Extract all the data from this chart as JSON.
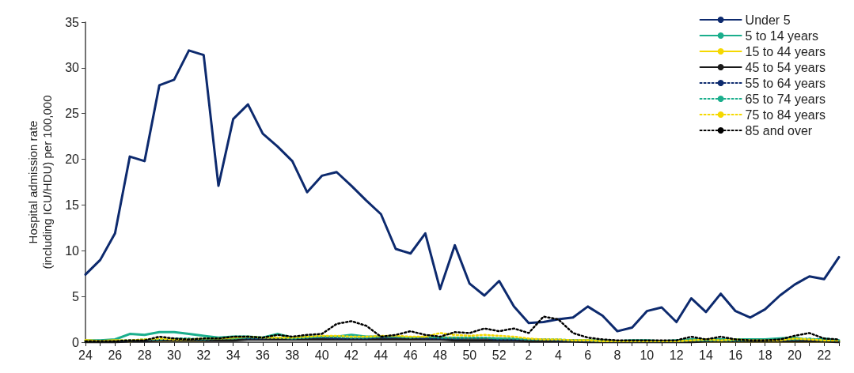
{
  "chart_data": {
    "type": "line",
    "ylabel": "Hospital admission rate (including ICU/HDU) per 100,000",
    "categories": [
      "24",
      null,
      "26",
      null,
      "28",
      null,
      "30",
      null,
      "32",
      null,
      "34",
      null,
      "36",
      null,
      "38",
      null,
      "40",
      null,
      "42",
      null,
      "44",
      null,
      "46",
      null,
      "48",
      null,
      "50",
      null,
      "52",
      null,
      "2",
      null,
      "4",
      null,
      "6",
      null,
      "8",
      null,
      "10",
      null,
      "12",
      null,
      "14",
      null,
      "16",
      null,
      "18",
      null,
      "20",
      null,
      "22",
      null
    ],
    "ylim": [
      0,
      35
    ],
    "yticks": [
      0,
      5,
      10,
      15,
      20,
      25,
      30,
      35
    ],
    "grid": false,
    "legend": "top right",
    "marker": "none",
    "series": [
      {
        "name": "Under 5",
        "color": "#0d2a6e",
        "line_style": "solid",
        "values": [
          7.4,
          9.0,
          11.9,
          20.3,
          19.8,
          28.1,
          28.7,
          31.9,
          31.4,
          17.1,
          24.4,
          26.0,
          22.8,
          21.4,
          19.8,
          16.4,
          18.2,
          18.6,
          17.1,
          15.5,
          14.0,
          10.2,
          9.7,
          11.9,
          5.8,
          10.6,
          6.4,
          5.1,
          6.7,
          3.9,
          2.1,
          2.2,
          2.5,
          2.7,
          3.9,
          2.9,
          1.2,
          1.6,
          3.4,
          3.8,
          2.2,
          4.8,
          3.3,
          5.3,
          3.4,
          2.7,
          3.6,
          5.1,
          6.3,
          7.2,
          6.9,
          9.3
        ]
      },
      {
        "name": "5 to 14 years",
        "color": "#1aae8c",
        "line_style": "solid",
        "values": [
          0.2,
          0.2,
          0.3,
          0.9,
          0.8,
          1.1,
          1.1,
          0.9,
          0.7,
          0.5,
          0.6,
          0.6,
          0.5,
          0.9,
          0.5,
          0.6,
          0.6,
          0.6,
          0.8,
          0.6,
          0.6,
          0.5,
          0.5,
          0.4,
          0.4,
          0.4,
          0.3,
          0.4,
          0.4,
          0.3,
          0.3,
          0.2,
          0.2,
          0.2,
          0.2,
          0.2,
          0.1,
          0.2,
          0.2,
          0.1,
          0.2,
          0.3,
          0.3,
          0.3,
          0.3,
          0.3,
          0.3,
          0.4,
          0.5,
          0.2,
          0.4,
          0.2
        ]
      },
      {
        "name": "15 to 44 years",
        "color": "#f5d800",
        "line_style": "solid",
        "values": [
          0.2,
          0.1,
          0.2,
          0.1,
          0.2,
          0.2,
          0.2,
          0.2,
          0.2,
          0.3,
          0.3,
          0.3,
          0.3,
          0.3,
          0.3,
          0.3,
          0.3,
          0.3,
          0.3,
          0.3,
          0.4,
          0.4,
          0.4,
          0.4,
          0.5,
          0.5,
          0.4,
          0.4,
          0.3,
          0.3,
          0.2,
          0.2,
          0.2,
          0.2,
          0.2,
          0.1,
          0.1,
          0.1,
          0.1,
          0.1,
          0.1,
          0.1,
          0.1,
          0.1,
          0.1,
          0.1,
          0.1,
          0.1,
          0.1,
          0.1,
          0.1,
          0.1
        ]
      },
      {
        "name": "45 to 54 years",
        "color": "#1a1a1a",
        "line_style": "solid",
        "values": [
          0,
          0,
          0,
          0.1,
          0.1,
          0.2,
          0.2,
          0.2,
          0.2,
          0.2,
          0.2,
          0.3,
          0.3,
          0.3,
          0.3,
          0.3,
          0.3,
          0.3,
          0.3,
          0.3,
          0.3,
          0.3,
          0.3,
          0.3,
          0.3,
          0.2,
          0.2,
          0.2,
          0.2,
          0.2,
          0.1,
          0.1,
          0.1,
          0.1,
          0,
          0,
          0,
          0,
          0,
          0,
          0,
          0,
          0.1,
          0.1,
          0.1,
          0.1,
          0.1,
          0.1,
          0.1,
          0.1,
          0.1,
          0
        ]
      },
      {
        "name": "55 to 64 years",
        "color": "#0d2a6e",
        "line_style": "dotted",
        "values": [
          0.1,
          0.1,
          0.1,
          0.2,
          0.2,
          0.3,
          0.3,
          0.3,
          0.3,
          0.4,
          0.5,
          0.4,
          0.4,
          0.5,
          0.4,
          0.5,
          0.5,
          0.4,
          0.4,
          0.4,
          0.5,
          0.5,
          0.5,
          0.4,
          0.4,
          0.4,
          0.4,
          0.4,
          0.3,
          0.3,
          0.3,
          0.3,
          0.2,
          0.2,
          0.1,
          0.1,
          0.1,
          0.1,
          0.1,
          0.1,
          0.1,
          0.2,
          0.2,
          0.2,
          0.2,
          0.2,
          0.2,
          0.2,
          0.3,
          0.3,
          0.2,
          0.2
        ]
      },
      {
        "name": "65 to 74 years",
        "color": "#1aae8c",
        "line_style": "dotted",
        "values": [
          0.1,
          0.1,
          0.2,
          0.2,
          0.3,
          0.3,
          0.4,
          0.4,
          0.3,
          0.4,
          0.4,
          0.5,
          0.5,
          0.5,
          0.4,
          0.5,
          0.6,
          0.6,
          0.5,
          0.5,
          0.6,
          0.6,
          0.5,
          0.6,
          0.5,
          0.5,
          0.5,
          0.5,
          0.4,
          0.4,
          0.3,
          0.3,
          0.3,
          0.2,
          0.2,
          0.1,
          0.1,
          0.1,
          0.1,
          0.1,
          0.1,
          0.2,
          0.2,
          0.2,
          0.2,
          0.2,
          0.2,
          0.3,
          0.3,
          0.4,
          0.2,
          0.2
        ]
      },
      {
        "name": "75 to 84 years",
        "color": "#f5d800",
        "line_style": "dotted",
        "values": [
          0.2,
          0.1,
          0.2,
          0.2,
          0.3,
          0.4,
          0.3,
          0.3,
          0.4,
          0.4,
          0.5,
          0.6,
          0.5,
          0.5,
          0.5,
          0.6,
          0.7,
          0.7,
          0.6,
          0.6,
          0.7,
          0.7,
          0.6,
          0.6,
          1.0,
          0.8,
          0.7,
          0.8,
          0.7,
          0.6,
          0.4,
          0.3,
          0.3,
          0.2,
          0.2,
          0.1,
          0.1,
          0.1,
          0.1,
          0.1,
          0.1,
          0.2,
          0.3,
          0.2,
          0.3,
          0.2,
          0.2,
          0.2,
          0.4,
          0.3,
          0.2,
          0.2
        ]
      },
      {
        "name": "85 and over",
        "color": "#000000",
        "line_style": "dotted",
        "values": [
          0.1,
          0.1,
          0.1,
          0.2,
          0.2,
          0.6,
          0.4,
          0.3,
          0.4,
          0.4,
          0.6,
          0.6,
          0.5,
          0.8,
          0.6,
          0.8,
          0.9,
          2.0,
          2.3,
          1.8,
          0.6,
          0.8,
          1.2,
          0.8,
          0.6,
          1.1,
          1.0,
          1.5,
          1.2,
          1.5,
          1.0,
          2.8,
          2.5,
          1.0,
          0.5,
          0.3,
          0.2,
          0.2,
          0.2,
          0.2,
          0.2,
          0.6,
          0.3,
          0.6,
          0.3,
          0.2,
          0.2,
          0.3,
          0.7,
          1.0,
          0.4,
          0.3
        ]
      }
    ]
  }
}
